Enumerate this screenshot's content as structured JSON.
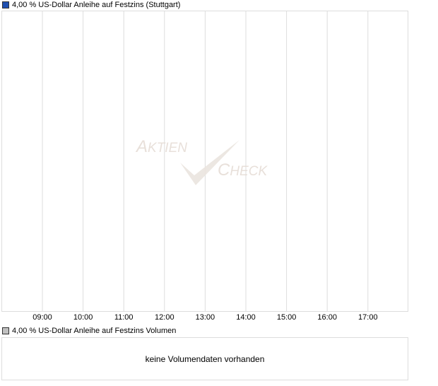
{
  "chart_data": {
    "type": "line",
    "legend": "4,00 % US-Dollar Anleihe auf Festzins (Stuttgart)",
    "series_color": "#1f4fb0",
    "x_ticks": [
      "09:00",
      "10:00",
      "11:00",
      "12:00",
      "13:00",
      "14:00",
      "15:00",
      "16:00",
      "17:00"
    ],
    "series": [
      {
        "name": "4,00 % US-Dollar Anleihe auf Festzins (Stuttgart)",
        "values": []
      }
    ],
    "grid": "vertical",
    "watermark": "AKTIEN CHECK"
  },
  "volume": {
    "legend": "4,00 % US-Dollar Anleihe auf Festzins Volumen",
    "legend_color": "#c0c0c0",
    "message": "keine Volumendaten vorhanden"
  }
}
